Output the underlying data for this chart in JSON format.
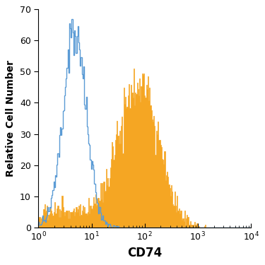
{
  "title": "",
  "xlabel": "CD74",
  "ylabel": "Relative Cell Number",
  "xlim_low": 1.0,
  "xlim_high": 10000.0,
  "ylim": [
    0,
    70
  ],
  "yticks": [
    0,
    10,
    20,
    30,
    40,
    50,
    60,
    70
  ],
  "blue_color": "#5b9bd5",
  "orange_color": "#f5a623",
  "fig_bg": "#ffffff",
  "xlabel_fontsize": 12,
  "ylabel_fontsize": 10,
  "tick_fontsize": 9,
  "n_bins": 256
}
